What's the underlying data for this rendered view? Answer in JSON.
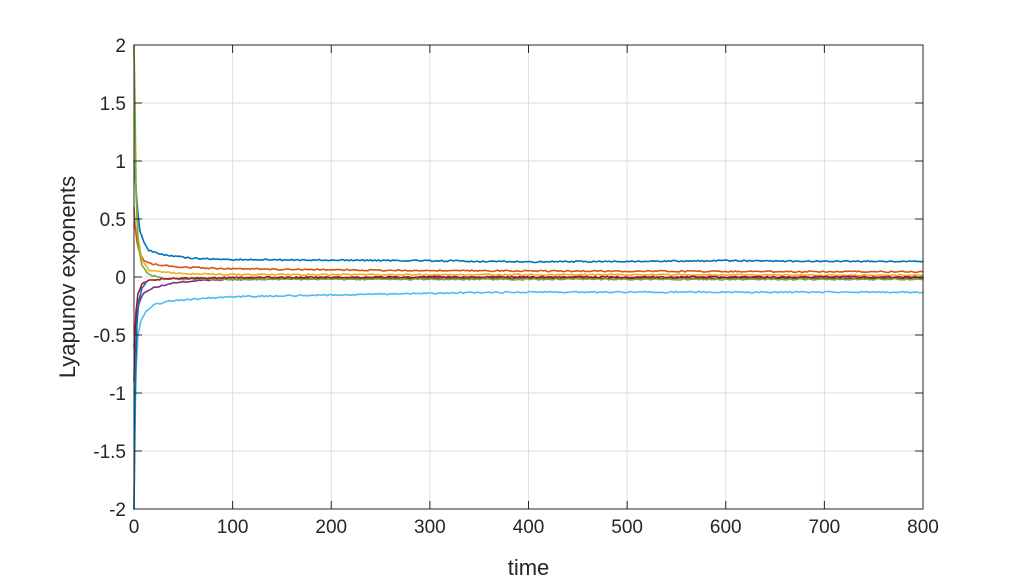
{
  "chart_data": {
    "type": "line",
    "title": "",
    "xlabel": "time",
    "ylabel": "Lyapunov exponents",
    "xlim": [
      0,
      800
    ],
    "ylim": [
      -2,
      2
    ],
    "grid": true,
    "legend": "none",
    "x_ticks": [
      0,
      100,
      200,
      300,
      400,
      500,
      600,
      700,
      800
    ],
    "x_tick_labels": [
      "0",
      "100",
      "200",
      "300",
      "400",
      "500",
      "600",
      "700",
      "800"
    ],
    "y_ticks": [
      2,
      1.5,
      1,
      0.5,
      0,
      -0.5,
      -1,
      -1.5,
      -2
    ],
    "y_tick_labels": [
      "2",
      "1.5",
      "1",
      "0.5",
      "0",
      "-0.5",
      "-1",
      "-1.5",
      "-2"
    ],
    "series": [
      {
        "color": "#0072BD",
        "x": [
          0,
          1,
          2,
          4,
          6,
          10,
          15,
          25,
          40,
          60,
          100,
          200,
          300,
          400,
          500,
          600,
          700,
          800
        ],
        "y": [
          1.0,
          0.9,
          0.75,
          0.55,
          0.4,
          0.3,
          0.23,
          0.2,
          0.18,
          0.16,
          0.15,
          0.145,
          0.14,
          0.13,
          0.135,
          0.14,
          0.135,
          0.135
        ]
      },
      {
        "color": "#D95319",
        "x": [
          0,
          1,
          3,
          6,
          10,
          20,
          40,
          80,
          150,
          300,
          500,
          800
        ],
        "y": [
          0.6,
          0.45,
          0.3,
          0.2,
          0.14,
          0.11,
          0.09,
          0.075,
          0.065,
          0.055,
          0.05,
          0.045
        ]
      },
      {
        "color": "#EDB120",
        "x": [
          0,
          1,
          2,
          4,
          8,
          15,
          30,
          60,
          120,
          300,
          500,
          800
        ],
        "y": [
          2.0,
          1.2,
          0.7,
          0.35,
          0.15,
          0.06,
          0.04,
          0.025,
          0.02,
          0.02,
          0.02,
          0.015
        ]
      },
      {
        "color": "#7E2F8E",
        "x": [
          0,
          1,
          3,
          6,
          10,
          20,
          40,
          70,
          100,
          200,
          400,
          800
        ],
        "y": [
          -0.6,
          -0.45,
          -0.3,
          -0.2,
          -0.14,
          -0.09,
          -0.05,
          -0.03,
          -0.02,
          -0.01,
          -0.01,
          -0.01
        ]
      },
      {
        "color": "#77AC30",
        "x": [
          0,
          1,
          2,
          4,
          8,
          15,
          30,
          60,
          120,
          300,
          500,
          800
        ],
        "y": [
          2.0,
          1.5,
          0.8,
          0.3,
          0.1,
          0.02,
          -0.01,
          -0.02,
          -0.02,
          -0.02,
          -0.02,
          -0.02
        ]
      },
      {
        "color": "#4DBEEE",
        "x": [
          0,
          1,
          2,
          4,
          7,
          12,
          20,
          35,
          60,
          100,
          200,
          300,
          400,
          600,
          800
        ],
        "y": [
          -2.0,
          -1.3,
          -0.8,
          -0.5,
          -0.38,
          -0.3,
          -0.24,
          -0.21,
          -0.19,
          -0.17,
          -0.155,
          -0.14,
          -0.13,
          -0.13,
          -0.13
        ]
      },
      {
        "color": "#A2142F",
        "x": [
          0,
          1,
          2,
          4,
          8,
          15,
          30,
          60,
          120,
          300,
          500,
          800
        ],
        "y": [
          -0.9,
          -0.5,
          -0.3,
          -0.15,
          -0.06,
          -0.03,
          -0.015,
          -0.01,
          -0.005,
          0.0,
          0.0,
          0.0
        ]
      },
      {
        "color": "#0072BD",
        "x": [
          0,
          1,
          2,
          3,
          5,
          8,
          12
        ],
        "y": [
          -2.0,
          -1.1,
          -0.7,
          -0.4,
          -0.2,
          -0.1,
          -0.05
        ]
      }
    ]
  }
}
